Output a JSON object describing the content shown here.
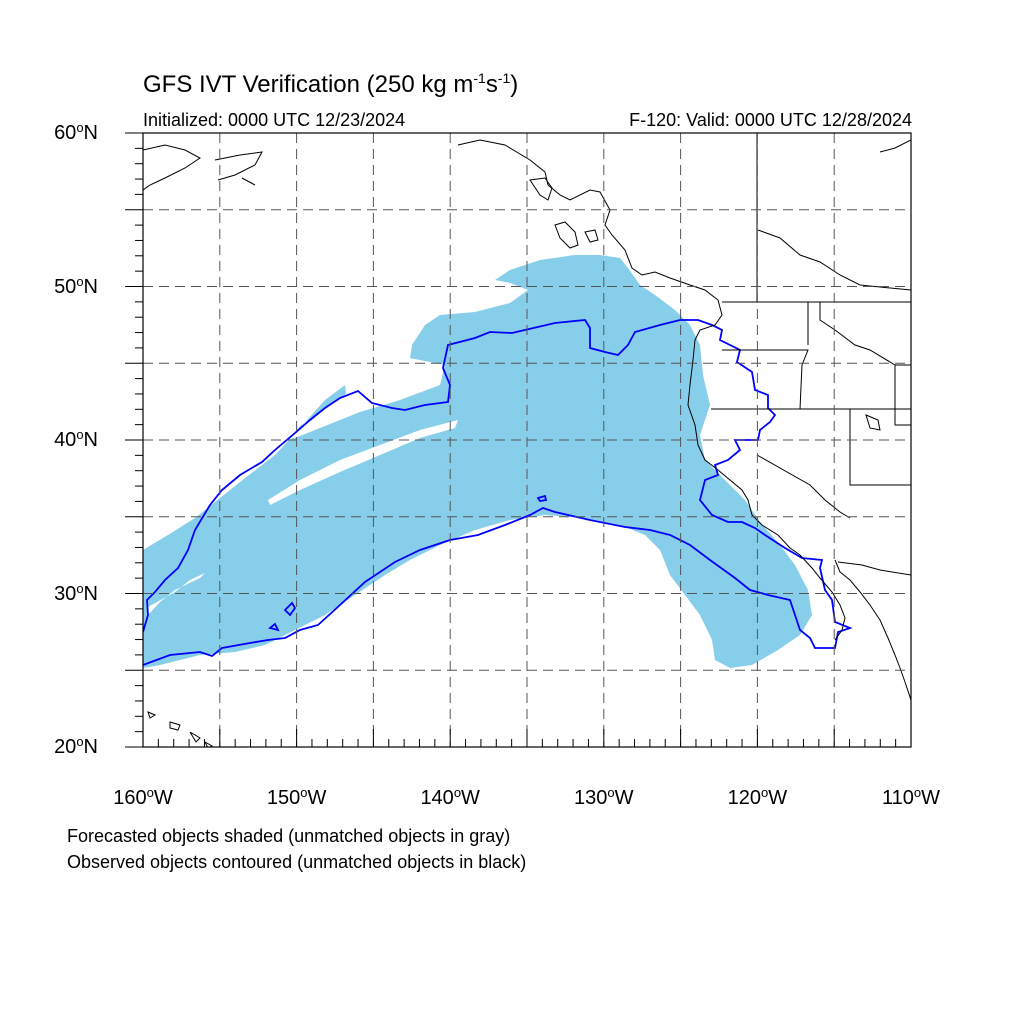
{
  "title": {
    "main": "GFS IVT Verification (250 kg m",
    "exp1": "-1",
    "mid": "s",
    "exp2": "-1",
    "end": ")"
  },
  "init_text": "Initialized: 0000 UTC 12/23/2024",
  "valid_text": "F-120: Valid: 0000 UTC 12/28/2024",
  "lat_ticks": [
    {
      "num": "60",
      "hemi": "N"
    },
    {
      "num": "50",
      "hemi": "N"
    },
    {
      "num": "40",
      "hemi": "N"
    },
    {
      "num": "30",
      "hemi": "N"
    },
    {
      "num": "20",
      "hemi": "N"
    }
  ],
  "lon_ticks": [
    {
      "num": "160",
      "hemi": "W"
    },
    {
      "num": "150",
      "hemi": "W"
    },
    {
      "num": "140",
      "hemi": "W"
    },
    {
      "num": "130",
      "hemi": "W"
    },
    {
      "num": "120",
      "hemi": "W"
    },
    {
      "num": "110",
      "hemi": "W"
    }
  ],
  "captions": [
    "Forecasted objects shaded (unmatched objects in gray)",
    "Observed objects contoured (unmatched objects in black)"
  ],
  "map_extent": {
    "lon_min": -160,
    "lon_max": -110,
    "lat_min": 20,
    "lat_max": 60
  },
  "colors": {
    "forecast_fill": "#87ceeb",
    "observed_contour": "#0000ff",
    "coastline": "#000000",
    "gridline": "#555555"
  }
}
